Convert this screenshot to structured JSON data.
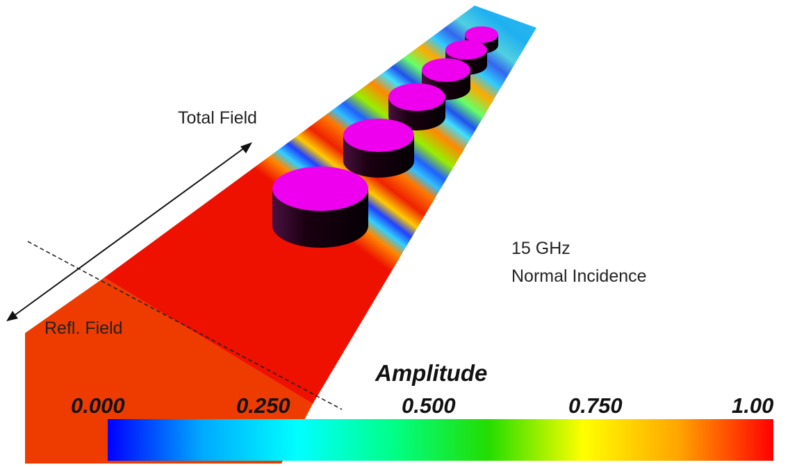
{
  "labels": {
    "frequency": "15 GHz",
    "incidence": "Normal Incidence",
    "total_field": "Total Field",
    "reflected_field": "Refl. Field"
  },
  "colorbar": {
    "title": "Amplitude",
    "ticks": [
      "0.000",
      "0.250",
      "0.500",
      "0.750",
      "1.00"
    ],
    "range": [
      0,
      1
    ],
    "stops": [
      "#0000ff",
      "#00aaff",
      "#00ffff",
      "#00ff88",
      "#22dd00",
      "#ffff00",
      "#ffa500",
      "#ff0000"
    ]
  },
  "colors": {
    "field_high": "#ee1100",
    "refl_region": "#ee3c00",
    "cylinder_top": "#ee00ee",
    "cylinder_side": "#1a0010"
  },
  "cylinder_count": 6
}
